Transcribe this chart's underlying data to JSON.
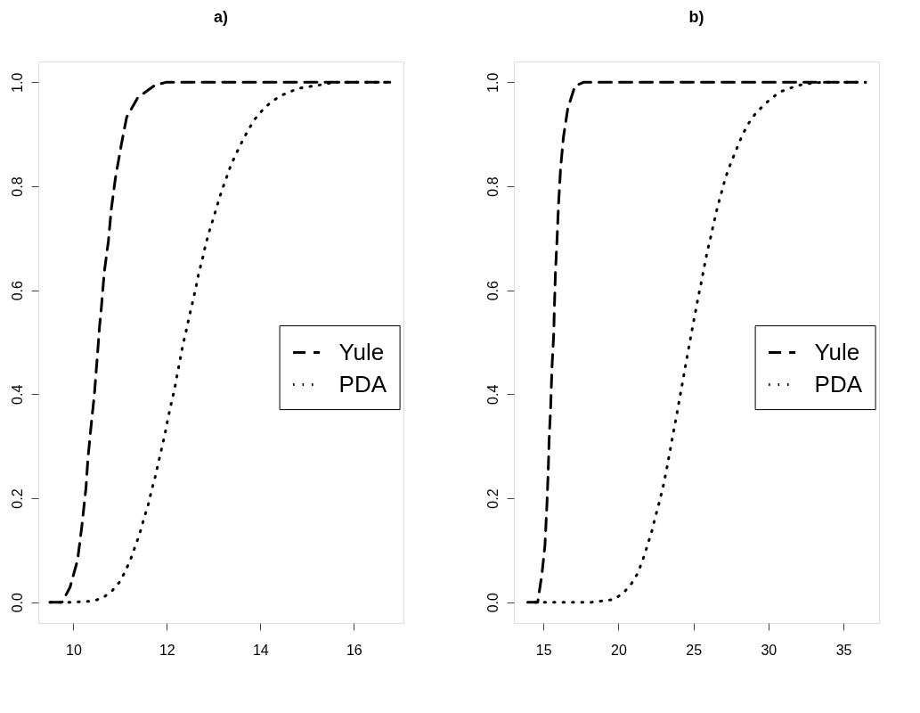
{
  "chart_data": [
    {
      "type": "line",
      "title": "a)",
      "xlim": [
        9.25,
        17.06
      ],
      "ylim": [
        -0.04,
        1.04
      ],
      "xticks": [
        10,
        12,
        14,
        16
      ],
      "yticks": [
        {
          "value": 0,
          "label": "0.0"
        },
        {
          "value": 0.2,
          "label": "0.2"
        },
        {
          "value": 0.4,
          "label": "0.4"
        },
        {
          "value": 0.6,
          "label": "0.6"
        },
        {
          "value": 0.8,
          "label": "0.8"
        },
        {
          "value": 1,
          "label": "1.0"
        }
      ],
      "grid": false,
      "legend": "right",
      "marker": "none",
      "series": [
        {
          "name": "Yule",
          "color": "#000000",
          "line_style": "dashed",
          "x": [
            9.5,
            9.76,
            9.93,
            10.09,
            10.18,
            10.27,
            10.31,
            10.38,
            10.45,
            10.51,
            10.56,
            10.6,
            10.66,
            10.75,
            10.81,
            10.9,
            11.02,
            11.14,
            11.38,
            11.74,
            11.98,
            13.0,
            14.0,
            15.0,
            16.0,
            16.77
          ],
          "values": [
            0,
            0,
            0.029,
            0.081,
            0.145,
            0.22,
            0.275,
            0.34,
            0.4,
            0.47,
            0.53,
            0.568,
            0.634,
            0.695,
            0.755,
            0.816,
            0.877,
            0.933,
            0.971,
            0.994,
            1.0,
            1.0,
            1.0,
            1.0,
            1.0,
            1.0
          ]
        },
        {
          "name": "PDA",
          "color": "#000000",
          "line_style": "dotted",
          "x": [
            9.5,
            9.99,
            10.42,
            10.64,
            10.83,
            10.99,
            11.12,
            11.23,
            11.33,
            11.43,
            11.51,
            11.6,
            11.67,
            11.75,
            11.82,
            11.89,
            11.96,
            12.02,
            12.09,
            12.16,
            12.22,
            12.28,
            12.34,
            12.41,
            12.48,
            12.55,
            12.62,
            12.68,
            12.76,
            12.83,
            12.91,
            13.0,
            13.09,
            13.18,
            13.28,
            13.38,
            13.5,
            13.62,
            13.75,
            13.89,
            14.05,
            14.23,
            14.43,
            14.64,
            14.85,
            15.07,
            15.34,
            15.6,
            16.0,
            16.77
          ],
          "values": [
            0,
            0,
            0.002,
            0.009,
            0.022,
            0.039,
            0.061,
            0.084,
            0.109,
            0.135,
            0.161,
            0.187,
            0.214,
            0.241,
            0.269,
            0.296,
            0.324,
            0.352,
            0.381,
            0.408,
            0.437,
            0.465,
            0.494,
            0.521,
            0.55,
            0.577,
            0.605,
            0.632,
            0.66,
            0.688,
            0.714,
            0.74,
            0.767,
            0.793,
            0.818,
            0.843,
            0.866,
            0.888,
            0.91,
            0.93,
            0.947,
            0.962,
            0.974,
            0.982,
            0.989,
            0.992,
            0.996,
            1.0,
            1.0,
            1.0
          ]
        }
      ]
    },
    {
      "type": "line",
      "title": "b)",
      "xlim": [
        13.03,
        37.37
      ],
      "ylim": [
        -0.04,
        1.04
      ],
      "xticks": [
        15,
        20,
        25,
        30,
        35
      ],
      "yticks": [
        {
          "value": 0,
          "label": "0.0"
        },
        {
          "value": 0.2,
          "label": "0.2"
        },
        {
          "value": 0.4,
          "label": "0.4"
        },
        {
          "value": 0.6,
          "label": "0.6"
        },
        {
          "value": 0.8,
          "label": "0.8"
        },
        {
          "value": 1,
          "label": "1.0"
        }
      ],
      "grid": false,
      "legend": "right",
      "marker": "none",
      "series": [
        {
          "name": "Yule",
          "color": "#000000",
          "line_style": "dashed",
          "x": [
            13.95,
            14.62,
            14.9,
            15.1,
            15.23,
            15.32,
            15.38,
            15.48,
            15.57,
            15.69,
            15.72,
            15.8,
            15.91,
            16.01,
            16.14,
            16.33,
            16.62,
            17.1,
            17.67,
            20.0,
            25.0,
            30.0,
            36.47
          ],
          "values": [
            0,
            0,
            0.054,
            0.109,
            0.186,
            0.253,
            0.313,
            0.374,
            0.452,
            0.518,
            0.557,
            0.634,
            0.7,
            0.767,
            0.833,
            0.894,
            0.949,
            0.993,
            1.0,
            1.0,
            1.0,
            1.0,
            1.0
          ]
        },
        {
          "name": "PDA",
          "color": "#000000",
          "line_style": "dotted",
          "x": [
            14.43,
            16.14,
            18.24,
            19.67,
            20.3,
            20.83,
            21.29,
            21.63,
            21.93,
            22.22,
            22.47,
            22.73,
            22.98,
            23.19,
            23.38,
            23.57,
            23.76,
            23.95,
            24.14,
            24.33,
            24.52,
            24.71,
            24.9,
            25.1,
            25.29,
            25.5,
            25.7,
            25.91,
            26.14,
            26.37,
            26.6,
            26.87,
            27.13,
            27.47,
            27.82,
            28.18,
            28.58,
            29.06,
            29.61,
            30.18,
            30.81,
            31.47,
            32.14,
            32.81,
            33.6,
            36.47
          ],
          "values": [
            0,
            0,
            0,
            0.005,
            0.017,
            0.034,
            0.056,
            0.082,
            0.109,
            0.136,
            0.165,
            0.193,
            0.223,
            0.252,
            0.282,
            0.312,
            0.342,
            0.371,
            0.402,
            0.432,
            0.463,
            0.493,
            0.523,
            0.553,
            0.583,
            0.612,
            0.642,
            0.673,
            0.701,
            0.731,
            0.76,
            0.788,
            0.816,
            0.843,
            0.868,
            0.893,
            0.917,
            0.937,
            0.954,
            0.969,
            0.982,
            0.989,
            0.995,
            0.998,
            1.0,
            1.0
          ]
        }
      ]
    }
  ]
}
